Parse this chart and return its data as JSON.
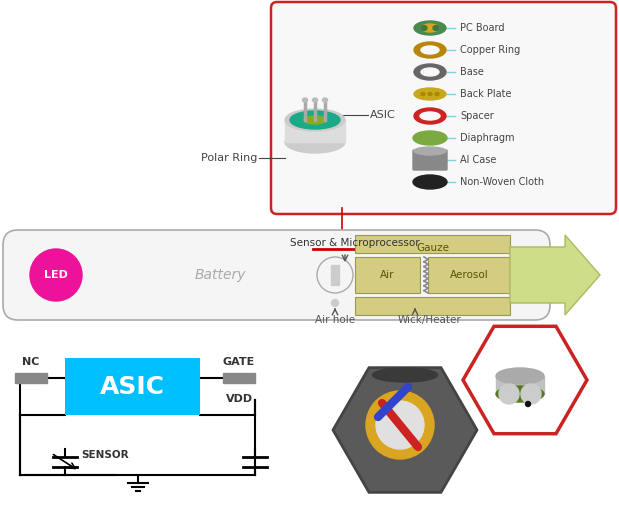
{
  "bg_color": "#ffffff",
  "legend_items": [
    {
      "label": "PC Board",
      "outer": "#4A8A50",
      "inner": "#DAA520"
    },
    {
      "label": "Copper Ring",
      "outer": "#B8860B",
      "inner": null
    },
    {
      "label": "Base",
      "outer": "#888888",
      "inner": null
    },
    {
      "label": "Back Plate",
      "outer": "#C8A820",
      "inner": null
    },
    {
      "label": "Spacer",
      "outer": "#CC2222",
      "inner": null
    },
    {
      "label": "Diaphragm",
      "outer": "#7AAA40",
      "inner": null
    },
    {
      "label": "Al Case",
      "outer": "#999999",
      "inner": null
    },
    {
      "label": "Non-Woven Cloth",
      "outer": "#222222",
      "inner": null
    }
  ],
  "asic_color": "#00BFFF",
  "led_color": "#EE1199",
  "arrow_color": "#CEDD88",
  "arrow_edge": "#AABB60",
  "sensor_label_color": "#CC0000",
  "cig_tube_color": "#F5F5F5",
  "cig_tube_edge": "#AAAAAA",
  "gauze_color": "#D4CC80",
  "gauze_edge": "#999955",
  "box_bg": "#F8F8F8",
  "box_edge": "#CC2222",
  "connector_color": "#88CCDD",
  "label_color": "#444444"
}
